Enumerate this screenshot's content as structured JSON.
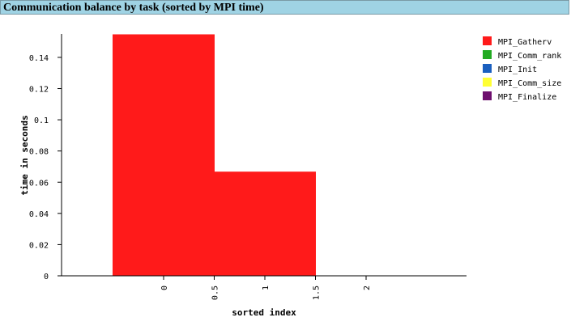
{
  "page": {
    "title": "Communication balance by task (sorted by MPI time)",
    "title_bar_color": "#9fd3e4"
  },
  "chart_data": {
    "type": "bar",
    "title": "",
    "xlabel": "sorted index",
    "ylabel": "time in seconds",
    "xlim": [
      -1,
      2.0
    ],
    "ylim": [
      0,
      0.155
    ],
    "x_ticks": [
      "0",
      "0.5",
      "1",
      "1.5",
      "2"
    ],
    "x_tick_values": [
      0,
      0.5,
      1,
      1.5,
      2
    ],
    "y_ticks": [
      "0",
      "0.02",
      "0.04",
      "0.06",
      "0.08",
      "0.1",
      "0.12",
      "0.14"
    ],
    "y_tick_values": [
      0,
      0.02,
      0.04,
      0.06,
      0.08,
      0.1,
      0.12,
      0.14
    ],
    "bar_width": 1,
    "categories": [
      0,
      1
    ],
    "series": [
      {
        "name": "MPI_Gatherv",
        "color": "#ff1a1a",
        "values": [
          0.1545,
          0.0665
        ]
      },
      {
        "name": "MPI_Comm_rank",
        "color": "#22aa22",
        "values": [
          0,
          0
        ]
      },
      {
        "name": "MPI_Init",
        "color": "#1a5fbf",
        "values": [
          0,
          0
        ]
      },
      {
        "name": "MPI_Comm_size",
        "color": "#ffff33",
        "values": [
          0,
          0
        ]
      },
      {
        "name": "MPI_Finalize",
        "color": "#6e0f6e",
        "values": [
          0,
          0
        ]
      }
    ],
    "legend_placement": "right",
    "grid": false
  }
}
